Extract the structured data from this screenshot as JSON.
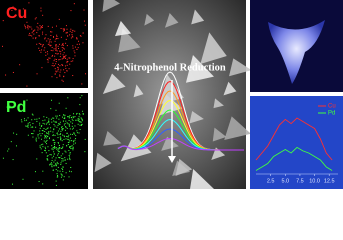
{
  "panels": {
    "cu_label": "Cu",
    "pd_label": "Pd",
    "reduction_title": "4-Nitrophenol Reduction"
  },
  "chart_data": {
    "type": "line",
    "x": [
      0,
      1,
      2,
      3,
      4,
      5,
      6,
      7,
      8,
      9,
      10,
      11,
      12,
      13
    ],
    "series": [
      {
        "name": "Cu",
        "color": "#ff3030",
        "values": [
          0.2,
          0.3,
          0.4,
          0.55,
          0.7,
          0.78,
          0.72,
          0.8,
          0.75,
          0.7,
          0.65,
          0.5,
          0.3,
          0.2
        ]
      },
      {
        "name": "Pd",
        "color": "#40ff40",
        "values": [
          0.05,
          0.1,
          0.15,
          0.25,
          0.3,
          0.35,
          0.3,
          0.38,
          0.33,
          0.3,
          0.25,
          0.2,
          0.1,
          0.05
        ]
      }
    ],
    "xlim": [
      0,
      14
    ],
    "xticks": [
      2.5,
      {
        "value": 5,
        "label": "5.0"
      },
      7.5,
      {
        "value": 10,
        "label": "10.0"
      },
      12.5
    ],
    "ylim": [
      0,
      1
    ],
    "legend": "upper right"
  }
}
